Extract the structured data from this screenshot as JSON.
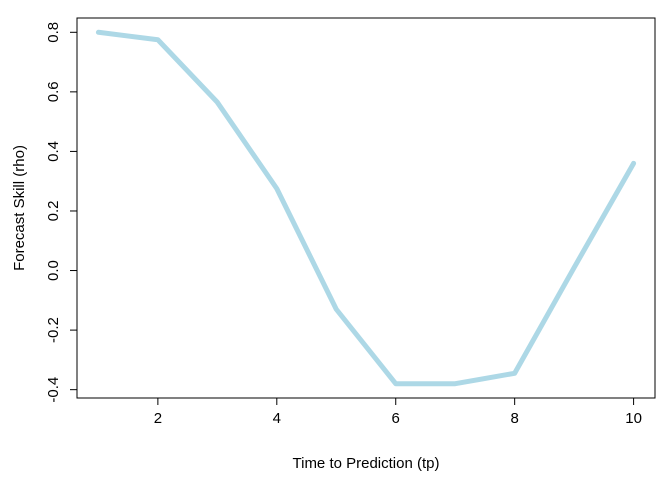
{
  "chart_data": {
    "type": "line",
    "title": "",
    "xlabel": "Time to Prediction (tp)",
    "ylabel": "Forecast Skill (rho)",
    "x": [
      1,
      2,
      3,
      4,
      5,
      6,
      7,
      8,
      9,
      10
    ],
    "series": [
      {
        "values": [
          0.8,
          0.775,
          0.565,
          0.275,
          -0.13,
          -0.38,
          -0.38,
          -0.345,
          0.01,
          0.36
        ],
        "color": "#ADD8E6"
      }
    ],
    "xlim": [
      0.64,
      10.36
    ],
    "ylim": [
      -0.428,
      0.848
    ],
    "xticks": [
      2,
      4,
      6,
      8,
      10
    ],
    "xtick_labels": [
      "2",
      "4",
      "6",
      "8",
      "10"
    ],
    "yticks": [
      -0.4,
      -0.2,
      0.0,
      0.2,
      0.4,
      0.6,
      0.8
    ],
    "ytick_labels": [
      "-0.4",
      "-0.2",
      "0.0",
      "0.2",
      "0.4",
      "0.6",
      "0.8"
    ],
    "grid": false,
    "legend": "none"
  }
}
